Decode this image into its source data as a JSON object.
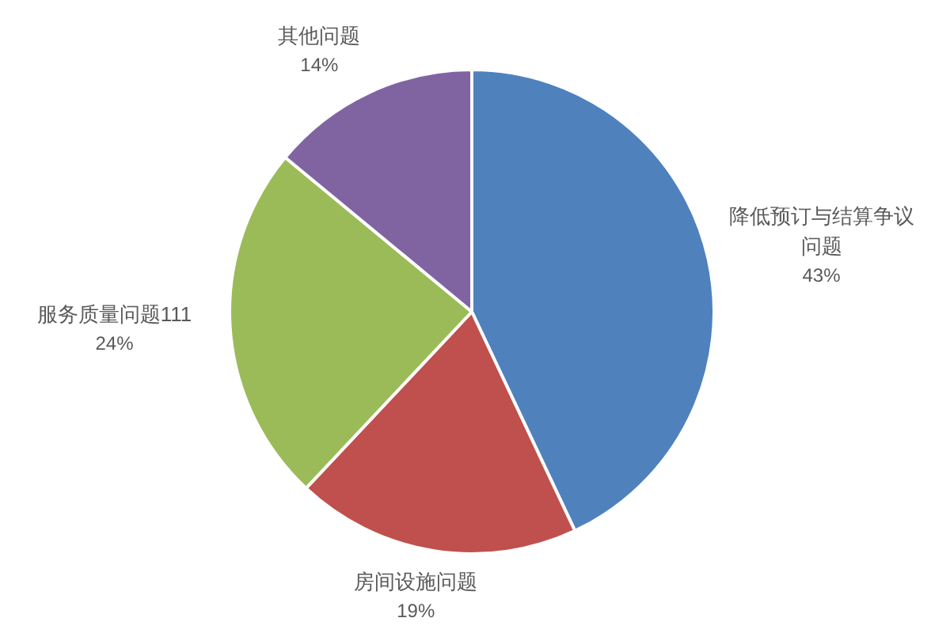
{
  "chart_data": {
    "type": "pie",
    "categories": [
      "降低预订与结算争议问题",
      "房间设施问题",
      "服务质量问题111",
      "其他问题"
    ],
    "values": [
      43,
      19,
      24,
      14
    ],
    "colors": [
      "#4f81bd",
      "#c0504d",
      "#9bbb59",
      "#8064a2"
    ],
    "value_labels": [
      "43%",
      "19%",
      "24%",
      "14%"
    ]
  }
}
